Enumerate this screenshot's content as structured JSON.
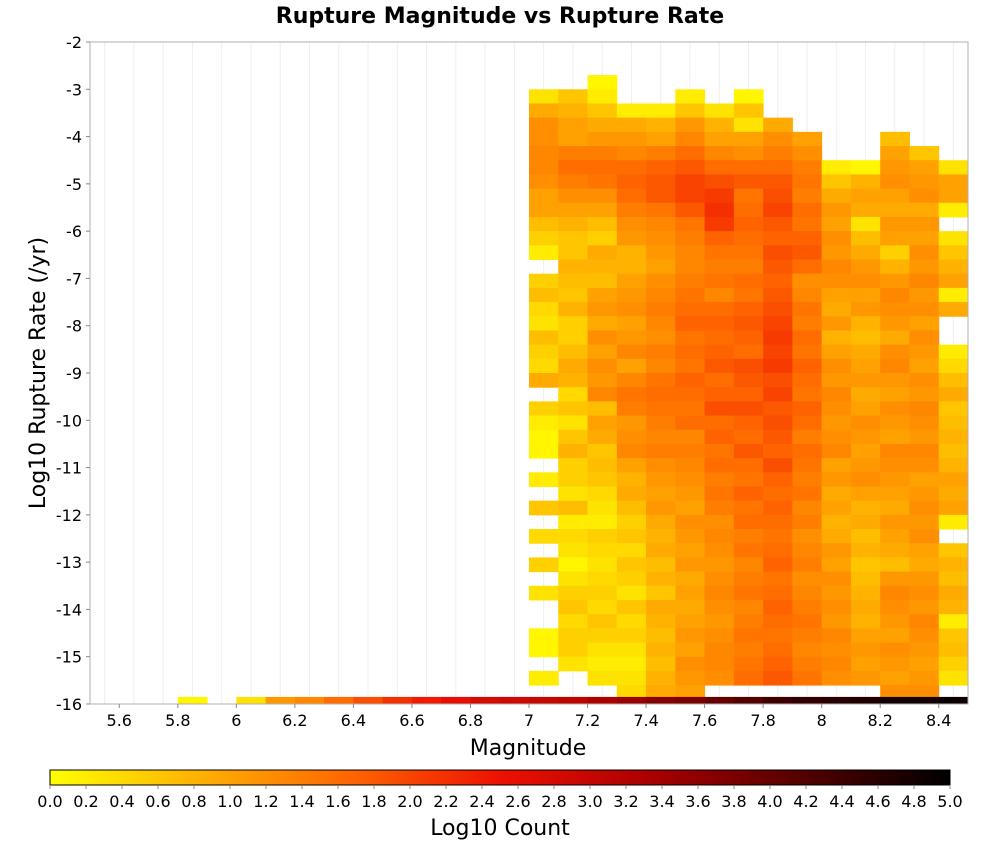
{
  "chart_data": {
    "type": "heatmap",
    "title": "Rupture Magnitude vs Rupture Rate",
    "xlabel": "Magnitude",
    "ylabel": "Log10 Rupture Rate (/yr)",
    "xlim": [
      5.5,
      8.5
    ],
    "ylim": [
      -16,
      -2
    ],
    "x_ticks": [
      5.6,
      5.8,
      6,
      6.2,
      6.4,
      6.6,
      6.8,
      7,
      7.2,
      7.4,
      7.6,
      7.8,
      8,
      8.2,
      8.4
    ],
    "x_tick_labels": [
      "5.6",
      "5.8",
      "6",
      "6.2",
      "6.4",
      "6.6",
      "6.8",
      "7",
      "7.2",
      "7.4",
      "7.6",
      "7.8",
      "8",
      "8.2",
      "8.4"
    ],
    "y_ticks": [
      -2,
      -3,
      -4,
      -5,
      -6,
      -7,
      -8,
      -9,
      -10,
      -11,
      -12,
      -13,
      -14,
      -15,
      -16
    ],
    "y_tick_labels": [
      "-2",
      "-3",
      "-4",
      "-5",
      "-6",
      "-7",
      "-8",
      "-9",
      "-10",
      "-11",
      "-12",
      "-13",
      "-14",
      "-15",
      "-16"
    ],
    "grid": true,
    "x_bin_width": 0.1,
    "y_bin_width": 0.3,
    "colorbar": {
      "label": "Log10 Count",
      "min": 0.0,
      "max": 5.0,
      "placement": "bottom",
      "ticks": [
        "0.0",
        "0.2",
        "0.4",
        "0.6",
        "0.8",
        "1.0",
        "1.2",
        "1.4",
        "1.6",
        "1.8",
        "2.0",
        "2.2",
        "2.4",
        "2.6",
        "2.8",
        "3.0",
        "3.2",
        "3.4",
        "3.6",
        "3.8",
        "4.0",
        "4.2",
        "4.4",
        "4.6",
        "4.8",
        "5.0"
      ],
      "colors": [
        "#ffff00",
        "#ffb000",
        "#ff6600",
        "#ee1100",
        "#aa0000",
        "#550000",
        "#000000"
      ]
    },
    "bottom_row": {
      "y": -16,
      "x_starts": [
        5.8,
        6.0,
        6.1,
        6.2,
        6.3,
        6.4,
        6.5,
        6.6,
        6.7,
        6.8,
        6.9,
        7.0,
        7.1,
        7.2,
        7.3,
        7.4,
        7.5,
        7.6,
        7.7,
        7.8,
        7.9,
        8.0,
        8.1,
        8.2,
        8.3,
        8.4
      ],
      "values": [
        0.1,
        0.3,
        1.1,
        1.3,
        1.6,
        1.9,
        2.2,
        2.4,
        2.6,
        2.8,
        2.9,
        3.0,
        3.1,
        3.3,
        3.5,
        3.7,
        3.8,
        4.0,
        4.2,
        4.4,
        4.5,
        4.6,
        4.7,
        4.8,
        4.8,
        4.9
      ]
    },
    "columns": [
      {
        "x": 7.0,
        "y_top": -3.0,
        "y_bottom": -15.7,
        "values": [
          0.3,
          0.9,
          1.2,
          1.2,
          1.3,
          1.3,
          1.2,
          1.0,
          1.0,
          0.7,
          0.5,
          0.2,
          null,
          0.5,
          0.7,
          0.4,
          0.3,
          0.7,
          0.5,
          0.4,
          0.9,
          null,
          0.5,
          0.2,
          0.1,
          0.1,
          null,
          0.2,
          null,
          0.6,
          null,
          0.4,
          null,
          0.5,
          null,
          0.3,
          null,
          null,
          0.1,
          0.1,
          null,
          0.2
        ]
      },
      {
        "x": 7.1,
        "y_top": -3.0,
        "y_bottom": -15.4,
        "values": [
          0.6,
          0.8,
          1.0,
          1.0,
          1.4,
          1.6,
          1.4,
          1.2,
          1.0,
          0.8,
          0.6,
          0.6,
          0.8,
          0.7,
          0.6,
          0.8,
          0.5,
          0.5,
          0.7,
          0.9,
          0.8,
          0.4,
          0.6,
          0.3,
          0.6,
          0.8,
          0.5,
          0.5,
          0.3,
          0.7,
          0.2,
          0.4,
          0.3,
          0.1,
          0.3,
          0.5,
          0.6,
          0.4,
          0.5,
          0.5,
          0.3,
          null
        ]
      },
      {
        "x": 7.2,
        "y_top": -2.7,
        "y_bottom": -15.7,
        "values": [
          0.1,
          0.2,
          0.6,
          0.9,
          1.1,
          1.4,
          1.6,
          1.5,
          1.2,
          1.0,
          0.7,
          0.5,
          0.9,
          0.8,
          0.7,
          1.0,
          1.1,
          0.9,
          1.2,
          1.0,
          1.2,
          1.1,
          1.3,
          0.7,
          1.0,
          0.9,
          0.6,
          0.7,
          0.6,
          0.4,
          0.3,
          0.2,
          0.5,
          0.4,
          0.3,
          0.4,
          0.5,
          0.4,
          0.6,
          0.5,
          0.3,
          0.2,
          0.3,
          null
        ]
      },
      {
        "x": 7.3,
        "y_top": -3.3,
        "y_bottom": -15.9,
        "values": [
          0.2,
          0.9,
          1.1,
          1.3,
          1.6,
          1.7,
          1.6,
          1.4,
          1.2,
          1.1,
          0.8,
          0.8,
          1.0,
          1.1,
          1.2,
          1.0,
          1.1,
          1.3,
          1.0,
          1.3,
          1.5,
          1.4,
          1.1,
          1.2,
          1.3,
          1.0,
          0.8,
          0.9,
          0.7,
          0.5,
          0.6,
          0.4,
          0.6,
          0.5,
          0.3,
          0.6,
          0.4,
          0.5,
          0.3,
          0.2,
          0.3,
          0.4
        ]
      },
      {
        "x": 7.4,
        "y_top": -3.3,
        "y_bottom": -15.9,
        "values": [
          0.2,
          0.8,
          1.0,
          1.4,
          1.7,
          1.8,
          1.8,
          1.5,
          1.3,
          1.2,
          1.1,
          1.0,
          1.2,
          1.3,
          1.4,
          1.3,
          1.2,
          1.4,
          1.3,
          1.5,
          1.6,
          1.5,
          1.4,
          1.3,
          1.4,
          1.2,
          1.1,
          1.0,
          1.1,
          0.9,
          0.8,
          0.9,
          0.7,
          0.8,
          0.6,
          0.9,
          0.8,
          0.7,
          0.8,
          0.7,
          0.8,
          0.9
        ]
      },
      {
        "x": 7.5,
        "y_top": -3.0,
        "y_bottom": -15.9,
        "values": [
          0.2,
          0.6,
          1.1,
          1.3,
          1.6,
          1.8,
          2.0,
          2.0,
          1.8,
          1.5,
          1.4,
          1.3,
          1.3,
          1.4,
          1.5,
          1.6,
          1.7,
          1.5,
          1.6,
          1.5,
          1.7,
          1.6,
          1.5,
          1.6,
          1.3,
          1.4,
          1.3,
          1.2,
          1.1,
          1.0,
          1.2,
          1.1,
          1.0,
          1.1,
          0.9,
          1.0,
          0.9,
          1.0,
          1.1,
          1.0,
          1.2,
          1.1,
          1.0
        ]
      },
      {
        "x": 7.6,
        "y_top": -3.3,
        "y_bottom": -15.9,
        "values": [
          0.3,
          0.8,
          1.0,
          1.3,
          1.6,
          1.9,
          2.1,
          2.2,
          2.1,
          1.7,
          1.5,
          1.4,
          1.5,
          1.3,
          1.6,
          1.7,
          1.6,
          1.7,
          1.8,
          1.6,
          1.7,
          1.9,
          1.6,
          1.7,
          1.5,
          1.6,
          1.4,
          1.5,
          1.4,
          1.2,
          1.3,
          1.2,
          1.1,
          1.2,
          1.3,
          1.2,
          1.1,
          1.2,
          1.3,
          1.3,
          1.2
        ]
      },
      {
        "x": 7.7,
        "y_top": -3.0,
        "y_bottom": -15.9,
        "values": [
          0.1,
          0.6,
          0.3,
          1.0,
          1.2,
          1.6,
          1.8,
          1.5,
          1.6,
          1.7,
          1.6,
          1.5,
          1.4,
          1.6,
          1.5,
          1.7,
          1.8,
          1.7,
          1.6,
          1.9,
          1.8,
          1.7,
          1.9,
          1.7,
          1.6,
          1.8,
          1.6,
          1.5,
          1.7,
          1.5,
          1.6,
          1.4,
          1.5,
          1.3,
          1.4,
          1.5,
          1.3,
          1.4,
          1.5,
          1.4,
          1.5,
          1.6
        ]
      },
      {
        "x": 7.8,
        "y_top": -3.6,
        "y_bottom": -15.9,
        "values": [
          0.9,
          1.2,
          1.4,
          1.6,
          1.8,
          1.9,
          2.0,
          1.8,
          1.7,
          1.9,
          1.8,
          1.7,
          1.8,
          1.9,
          2.0,
          2.1,
          2.0,
          2.1,
          1.9,
          2.0,
          1.8,
          1.9,
          1.8,
          1.7,
          1.9,
          1.7,
          1.6,
          1.7,
          1.6,
          1.5,
          1.6,
          1.7,
          1.5,
          1.6,
          1.7,
          1.6,
          1.5,
          1.6,
          1.7,
          1.8
        ]
      },
      {
        "x": 7.9,
        "y_top": -3.9,
        "y_bottom": -15.9,
        "values": [
          1.0,
          1.2,
          1.4,
          1.5,
          1.4,
          1.6,
          1.5,
          1.7,
          1.8,
          1.6,
          1.2,
          1.3,
          1.5,
          1.4,
          1.6,
          1.5,
          1.7,
          1.6,
          1.5,
          1.7,
          1.6,
          1.4,
          1.6,
          1.5,
          1.4,
          1.5,
          1.3,
          1.4,
          1.2,
          1.3,
          1.4,
          1.2,
          1.3,
          1.4,
          1.5,
          1.4,
          1.3,
          1.4,
          1.5
        ]
      },
      {
        "x": 8.0,
        "y_top": -4.5,
        "y_bottom": -15.9,
        "values": [
          0.2,
          0.6,
          0.9,
          1.1,
          1.0,
          1.2,
          1.1,
          1.3,
          1.2,
          1.0,
          0.9,
          1.1,
          0.8,
          1.0,
          1.2,
          1.1,
          1.3,
          1.2,
          1.1,
          1.2,
          1.3,
          1.0,
          1.1,
          0.9,
          1.0,
          0.8,
          0.9,
          1.1,
          1.0,
          1.2,
          1.1,
          1.2,
          1.1,
          1.3,
          1.2,
          1.3,
          1.2
        ]
      },
      {
        "x": 8.1,
        "y_top": -4.5,
        "y_bottom": -15.9,
        "values": [
          0.1,
          0.8,
          1.0,
          0.9,
          0.3,
          0.7,
          0.9,
          1.1,
          1.2,
          1.0,
          1.1,
          0.8,
          0.7,
          0.9,
          1.0,
          1.1,
          0.9,
          1.0,
          1.2,
          1.1,
          1.0,
          1.1,
          1.2,
          1.0,
          0.8,
          0.9,
          0.7,
          0.8,
          0.6,
          0.7,
          0.8,
          0.9,
          0.8,
          1.0,
          1.1,
          1.0,
          1.1
        ]
      },
      {
        "x": 8.2,
        "y_top": -3.9,
        "y_bottom": -15.9,
        "values": [
          0.7,
          1.0,
          1.1,
          1.2,
          1.0,
          0.9,
          1.1,
          1.0,
          0.5,
          0.8,
          1.1,
          1.3,
          1.2,
          1.1,
          0.9,
          1.2,
          1.3,
          1.1,
          1.0,
          1.2,
          1.1,
          1.0,
          1.3,
          1.2,
          1.1,
          1.0,
          0.9,
          1.1,
          1.0,
          0.9,
          0.7,
          1.1,
          1.3,
          1.2,
          1.1,
          1.0,
          1.2,
          1.1,
          1.0,
          1.2
        ]
      },
      {
        "x": 8.3,
        "y_top": -4.2,
        "y_bottom": -15.9,
        "values": [
          0.6,
          1.0,
          1.1,
          1.2,
          0.9,
          1.1,
          1.0,
          1.2,
          1.1,
          1.3,
          1.1,
          1.2,
          1.0,
          1.2,
          1.1,
          1.0,
          1.2,
          1.1,
          1.3,
          1.2,
          1.1,
          1.3,
          1.2,
          1.0,
          1.1,
          1.2,
          1.1,
          1.2,
          1.0,
          0.9,
          1.1,
          1.2,
          1.1,
          1.3,
          1.2,
          1.1,
          1.0,
          1.1,
          1.2
        ]
      },
      {
        "x": 8.4,
        "y_top": -4.5,
        "y_bottom": -15.9,
        "values": [
          0.3,
          1.0,
          1.0,
          0.2,
          null,
          0.3,
          0.6,
          0.8,
          1.0,
          0.2,
          0.9,
          null,
          null,
          0.2,
          0.4,
          0.7,
          0.9,
          0.6,
          0.7,
          0.8,
          0.7,
          0.8,
          1.0,
          0.9,
          1.0,
          0.2,
          null,
          0.6,
          0.8,
          0.7,
          0.9,
          0.8,
          0.2,
          0.6,
          0.7,
          0.5,
          0.3,
          null
        ]
      }
    ]
  }
}
